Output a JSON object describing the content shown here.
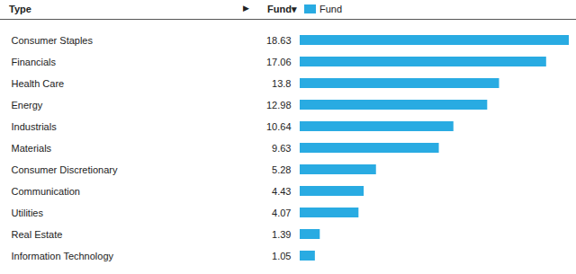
{
  "chart_data": {
    "type": "bar",
    "orientation": "horizontal",
    "y_label": "Type",
    "x_label": "Fund▾",
    "annotations": [
      "▶"
    ],
    "categories": [
      "Consumer Staples",
      "Financials",
      "Health Care",
      "Energy",
      "Industrials",
      "Materials",
      "Consumer Discretionary",
      "Communication",
      "Utilities",
      "Real Estate",
      "Information Technology"
    ],
    "series": [
      {
        "name": "Fund",
        "color": "#29abe2",
        "values": [
          18.63,
          17.06,
          13.8,
          12.98,
          10.64,
          9.63,
          5.28,
          4.43,
          4.07,
          1.39,
          1.05
        ]
      }
    ],
    "xlim": [
      0,
      18.63
    ],
    "grid": false,
    "legend": "top",
    "data_labels": true,
    "tick_labels": false
  }
}
